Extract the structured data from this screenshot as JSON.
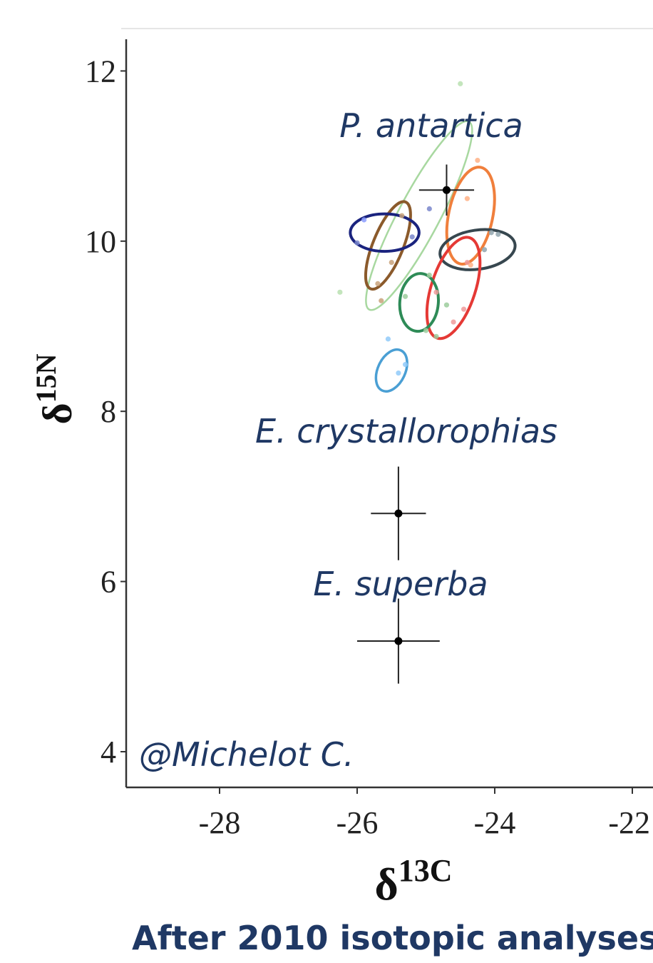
{
  "chart_data": {
    "type": "scatter",
    "title": "",
    "xlabel": "δ13C",
    "ylabel": "δ15N",
    "xlabel_base": "δ",
    "xlabel_sup": "13C",
    "ylabel_base": "δ",
    "ylabel_sup": "15N",
    "xlim": [
      -29.4,
      -21.5
    ],
    "ylim": [
      3.6,
      12.5
    ],
    "x_ticks": [
      -28,
      -26,
      -24,
      -22
    ],
    "x_tick_labels": [
      "-28",
      "-26",
      "-24",
      "-22"
    ],
    "y_ticks": [
      4,
      6,
      8,
      10,
      12
    ],
    "y_tick_labels": [
      "4",
      "6",
      "8",
      "10",
      "12"
    ],
    "grid": false,
    "crosshairs": [
      {
        "species": "P. antartica",
        "x": -24.7,
        "y": 10.6,
        "x_err": 0.4,
        "y_err": 0.3
      },
      {
        "species": "E. crystallorophias",
        "x": -25.4,
        "y": 6.8,
        "x_err": 0.4,
        "y_err": 0.55
      },
      {
        "species": "E. superba",
        "x": -25.4,
        "y": 5.3,
        "x_err": 0.6,
        "y_err": 0.5
      }
    ],
    "ellipses": [
      {
        "cx": -25.1,
        "cy": 10.3,
        "rx": 0.3,
        "ry": 1.25,
        "angle": 28,
        "color": "#a8d8a0",
        "width": 2.5
      },
      {
        "cx": -25.55,
        "cy": 9.95,
        "rx": 0.22,
        "ry": 0.55,
        "angle": 22,
        "color": "#8b5a2b",
        "width": 4
      },
      {
        "cx": -25.6,
        "cy": 10.1,
        "rx": 0.5,
        "ry": 0.22,
        "angle": 0,
        "color": "#1a237e",
        "width": 4
      },
      {
        "cx": -24.35,
        "cy": 10.3,
        "rx": 0.32,
        "ry": 0.58,
        "angle": 12,
        "color": "#f07f3c",
        "width": 4
      },
      {
        "cx": -24.25,
        "cy": 9.9,
        "rx": 0.55,
        "ry": 0.23,
        "angle": -8,
        "color": "#37474f",
        "width": 4
      },
      {
        "cx": -24.6,
        "cy": 9.45,
        "rx": 0.32,
        "ry": 0.62,
        "angle": 18,
        "color": "#e53935",
        "width": 4
      },
      {
        "cx": -25.1,
        "cy": 9.28,
        "rx": 0.28,
        "ry": 0.34,
        "angle": 5,
        "color": "#2e8b57",
        "width": 4
      },
      {
        "cx": -25.5,
        "cy": 8.48,
        "rx": 0.2,
        "ry": 0.26,
        "angle": 25,
        "color": "#4a9fd4",
        "width": 3.5
      }
    ],
    "points": [
      {
        "x": -24.5,
        "y": 11.85,
        "color": "#b8e0b0"
      },
      {
        "x": -26.25,
        "y": 9.4,
        "color": "#b8e0b0"
      },
      {
        "x": -25.9,
        "y": 10.25,
        "color": "#8c9eff"
      },
      {
        "x": -26.0,
        "y": 9.98,
        "color": "#7986cb"
      },
      {
        "x": -25.2,
        "y": 10.05,
        "color": "#7986cb"
      },
      {
        "x": -24.95,
        "y": 10.38,
        "color": "#7986cb"
      },
      {
        "x": -25.35,
        "y": 10.3,
        "color": "#c9a27a"
      },
      {
        "x": -25.7,
        "y": 9.5,
        "color": "#c9a27a"
      },
      {
        "x": -25.5,
        "y": 9.75,
        "color": "#c9a27a"
      },
      {
        "x": -25.65,
        "y": 9.3,
        "color": "#c9a27a"
      },
      {
        "x": -24.05,
        "y": 10.1,
        "color": "#90a4ae"
      },
      {
        "x": -23.95,
        "y": 10.08,
        "color": "#90a4ae"
      },
      {
        "x": -24.15,
        "y": 9.9,
        "color": "#90a4ae"
      },
      {
        "x": -24.4,
        "y": 10.5,
        "color": "#ffb085"
      },
      {
        "x": -24.25,
        "y": 10.95,
        "color": "#ffb085"
      },
      {
        "x": -24.35,
        "y": 9.72,
        "color": "#ffb085"
      },
      {
        "x": -24.85,
        "y": 9.4,
        "color": "#ef9a9a"
      },
      {
        "x": -24.6,
        "y": 9.05,
        "color": "#ef9a9a"
      },
      {
        "x": -24.45,
        "y": 9.2,
        "color": "#ef9a9a"
      },
      {
        "x": -24.4,
        "y": 9.75,
        "color": "#ef9a9a"
      },
      {
        "x": -25.3,
        "y": 9.35,
        "color": "#9ccc9c"
      },
      {
        "x": -25.0,
        "y": 8.95,
        "color": "#9ccc9c"
      },
      {
        "x": -24.85,
        "y": 8.88,
        "color": "#9ccc9c"
      },
      {
        "x": -24.95,
        "y": 9.6,
        "color": "#9ccc9c"
      },
      {
        "x": -24.7,
        "y": 9.25,
        "color": "#9ccc9c"
      },
      {
        "x": -25.4,
        "y": 8.45,
        "color": "#90caf9"
      },
      {
        "x": -25.3,
        "y": 8.55,
        "color": "#90caf9"
      },
      {
        "x": -25.55,
        "y": 8.85,
        "color": "#90caf9"
      }
    ]
  },
  "annotations": {
    "p_antartica": "P. antartica",
    "e_crystallorophias": "E. crystallorophias",
    "e_superba": "E. superba",
    "credit": "@Michelot C."
  },
  "caption": "After 2010 isotopic analyses",
  "colors": {
    "annotation_text": "#1f3864",
    "axis": "#333333",
    "crosshair": "#222222"
  }
}
